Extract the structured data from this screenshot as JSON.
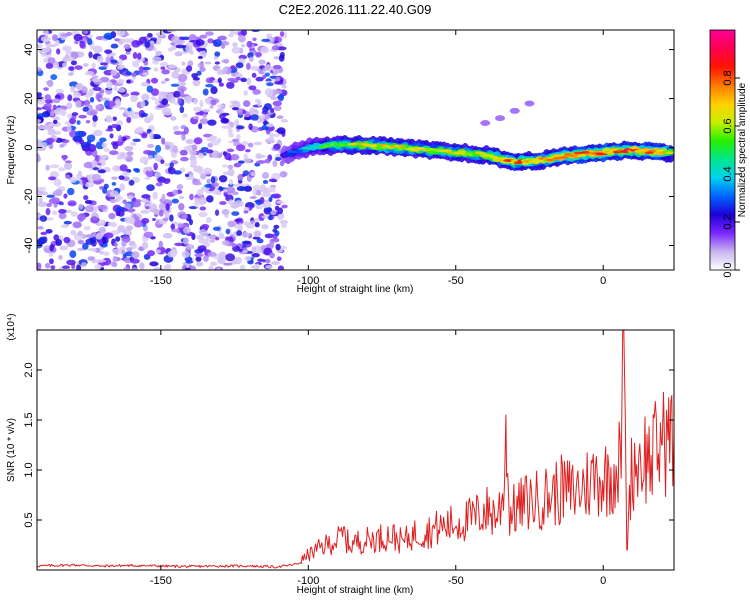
{
  "figure": {
    "title": "C2E2.2026.111.22.40.G09"
  },
  "chart_data": [
    {
      "type": "heatmap",
      "xlabel": "Height of straight line (km)",
      "ylabel": "Frequency (Hz)",
      "xlim": [
        -192,
        24
      ],
      "ylim": [
        -50,
        48
      ],
      "x_ticks": [
        -150,
        -100,
        -50,
        0
      ],
      "y_ticks": [
        -40,
        -20,
        0,
        20,
        40
      ],
      "colorbar": {
        "label": "Normalized spectral amplitude",
        "range": [
          0.0,
          1.0
        ],
        "ticks": [
          0.0,
          0.2,
          0.4,
          0.6,
          0.8
        ],
        "tick_labels": [
          "0.0",
          "0.2",
          "0.4",
          "0.6",
          "0.8"
        ],
        "colors": [
          "#ffffff",
          "#c8b4f0",
          "#7a28ff",
          "#1c00d8",
          "#0064ff",
          "#00d2f0",
          "#00e68c",
          "#28f000",
          "#c8f000",
          "#ffd000",
          "#ff7800",
          "#ff1400",
          "#ff0050",
          "#ff0096"
        ]
      },
      "ridge": {
        "x": [
          -108,
          -100,
          -90,
          -80,
          -70,
          -60,
          -50,
          -40,
          -30,
          -20,
          -10,
          0,
          10,
          20,
          24
        ],
        "y": [
          -3,
          0,
          1,
          1,
          0,
          -1,
          -2,
          -3,
          -6,
          -5,
          -3,
          -2,
          -1,
          -2,
          -2
        ]
      },
      "ridge_amplitude": [
        0.25,
        0.45,
        0.65,
        0.7,
        0.75,
        0.7,
        0.72,
        0.7,
        0.85,
        0.8,
        0.9,
        0.92,
        0.88,
        0.85,
        0.6
      ],
      "faint_branch": {
        "x": [
          -40,
          -35,
          -30,
          -25
        ],
        "y": [
          10,
          12,
          15,
          18
        ]
      }
    },
    {
      "type": "line",
      "xlabel": "Height of straight line (km)",
      "ylabel": "SNR (10 * v/v)",
      "y_multiplier": "(x10⁴)",
      "xlim": [
        -192,
        24
      ],
      "ylim": [
        0,
        24000
      ],
      "x_ticks": [
        -150,
        -100,
        -50,
        0
      ],
      "y_ticks": [
        5000,
        10000,
        15000,
        20000
      ],
      "y_tick_labels": [
        "0.5",
        "1.0",
        "1.5",
        "2.0"
      ],
      "series": [
        {
          "color": "#e02020",
          "x": [
            -192,
            -180,
            -170,
            -160,
            -150,
            -140,
            -130,
            -120,
            -110,
            -104,
            -100,
            -96,
            -92,
            -90,
            -88,
            -86,
            -84,
            -80,
            -76,
            -72,
            -68,
            -64,
            -60,
            -56,
            -52,
            -48,
            -44,
            -40,
            -36,
            -34,
            -33,
            -32,
            -30,
            -26,
            -22,
            -18,
            -14,
            -10,
            -6,
            -2,
            0,
            2,
            4,
            6,
            7,
            8,
            9,
            10,
            12,
            14,
            16,
            18,
            20,
            22,
            24
          ],
          "y": [
            400,
            500,
            400,
            450,
            400,
            350,
            400,
            400,
            300,
            600,
            1500,
            2200,
            2800,
            3000,
            3600,
            2400,
            2800,
            3000,
            3200,
            3500,
            2800,
            3600,
            3800,
            4200,
            4500,
            4800,
            5200,
            6000,
            5500,
            7000,
            15500,
            5800,
            6000,
            6800,
            7000,
            7500,
            8000,
            7800,
            8500,
            9500,
            9000,
            9500,
            10000,
            11000,
            23500,
            2000,
            8000,
            10500,
            11000,
            11500,
            11000,
            12000,
            12500,
            13000,
            13500
          ]
        }
      ]
    }
  ]
}
